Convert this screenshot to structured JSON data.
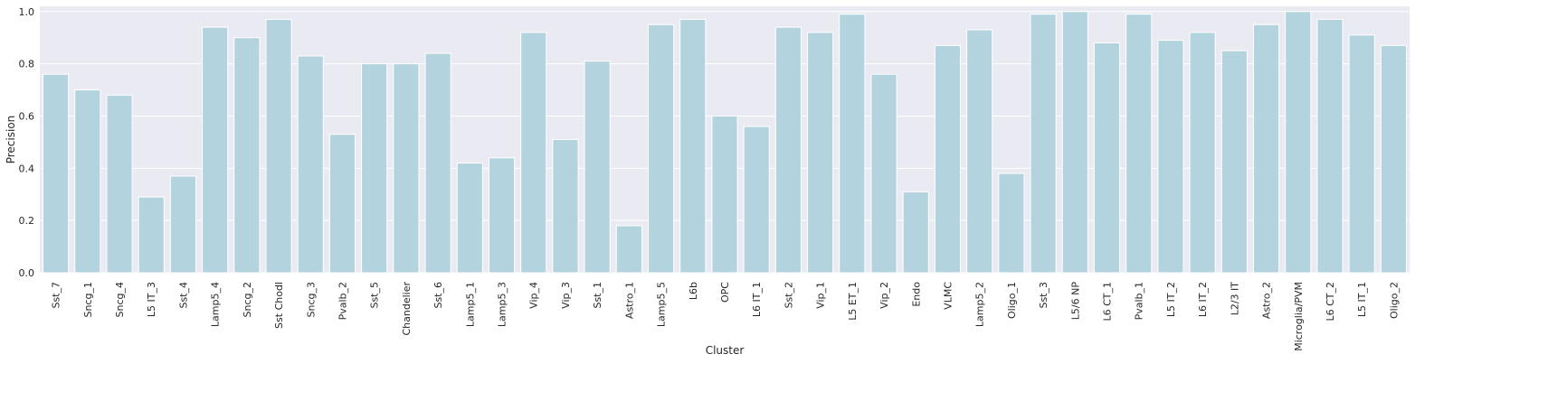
{
  "chart_data": {
    "type": "bar",
    "xlabel": "Cluster",
    "ylabel": "Precision",
    "ylim": [
      0,
      1.02
    ],
    "yticks": [
      "0.0",
      "0.2",
      "0.4",
      "0.6",
      "0.8",
      "1.0"
    ],
    "grid": true,
    "bar_color": "#b3d4df",
    "background_color": "#eaeaf2",
    "categories": [
      "Sst_7",
      "Sncg_1",
      "Sncg_4",
      "L5 IT_3",
      "Sst_4",
      "Lamp5_4",
      "Sncg_2",
      "Sst Chodl",
      "Sncg_3",
      "Pvalb_2",
      "Sst_5",
      "Chandelier",
      "Sst_6",
      "Lamp5_1",
      "Lamp5_3",
      "Vip_4",
      "Vip_3",
      "Sst_1",
      "Astro_1",
      "Lamp5_5",
      "L6b",
      "OPC",
      "L6 IT_1",
      "Sst_2",
      "Vip_1",
      "L5 ET_1",
      "Vip_2",
      "Endo",
      "VLMC",
      "Lamp5_2",
      "Oligo_1",
      "Sst_3",
      "L5/6 NP",
      "L6 CT_1",
      "Pvalb_1",
      "L5 IT_2",
      "L6 IT_2",
      "L2/3 IT",
      "Astro_2",
      "Microglia/PVM",
      "L6 CT_2",
      "L5 IT_1",
      "Oligo_2"
    ],
    "values": [
      0.76,
      0.7,
      0.68,
      0.29,
      0.37,
      0.94,
      0.9,
      0.97,
      0.83,
      0.53,
      0.8,
      0.8,
      0.84,
      0.42,
      0.44,
      0.92,
      0.51,
      0.81,
      0.18,
      0.95,
      0.97,
      0.6,
      0.56,
      0.94,
      0.92,
      0.99,
      0.76,
      0.31,
      0.87,
      0.93,
      0.38,
      0.99,
      1.0,
      0.88,
      0.99,
      0.89,
      0.92,
      0.85,
      0.95,
      1.0,
      0.97,
      0.91,
      0.87
    ]
  }
}
